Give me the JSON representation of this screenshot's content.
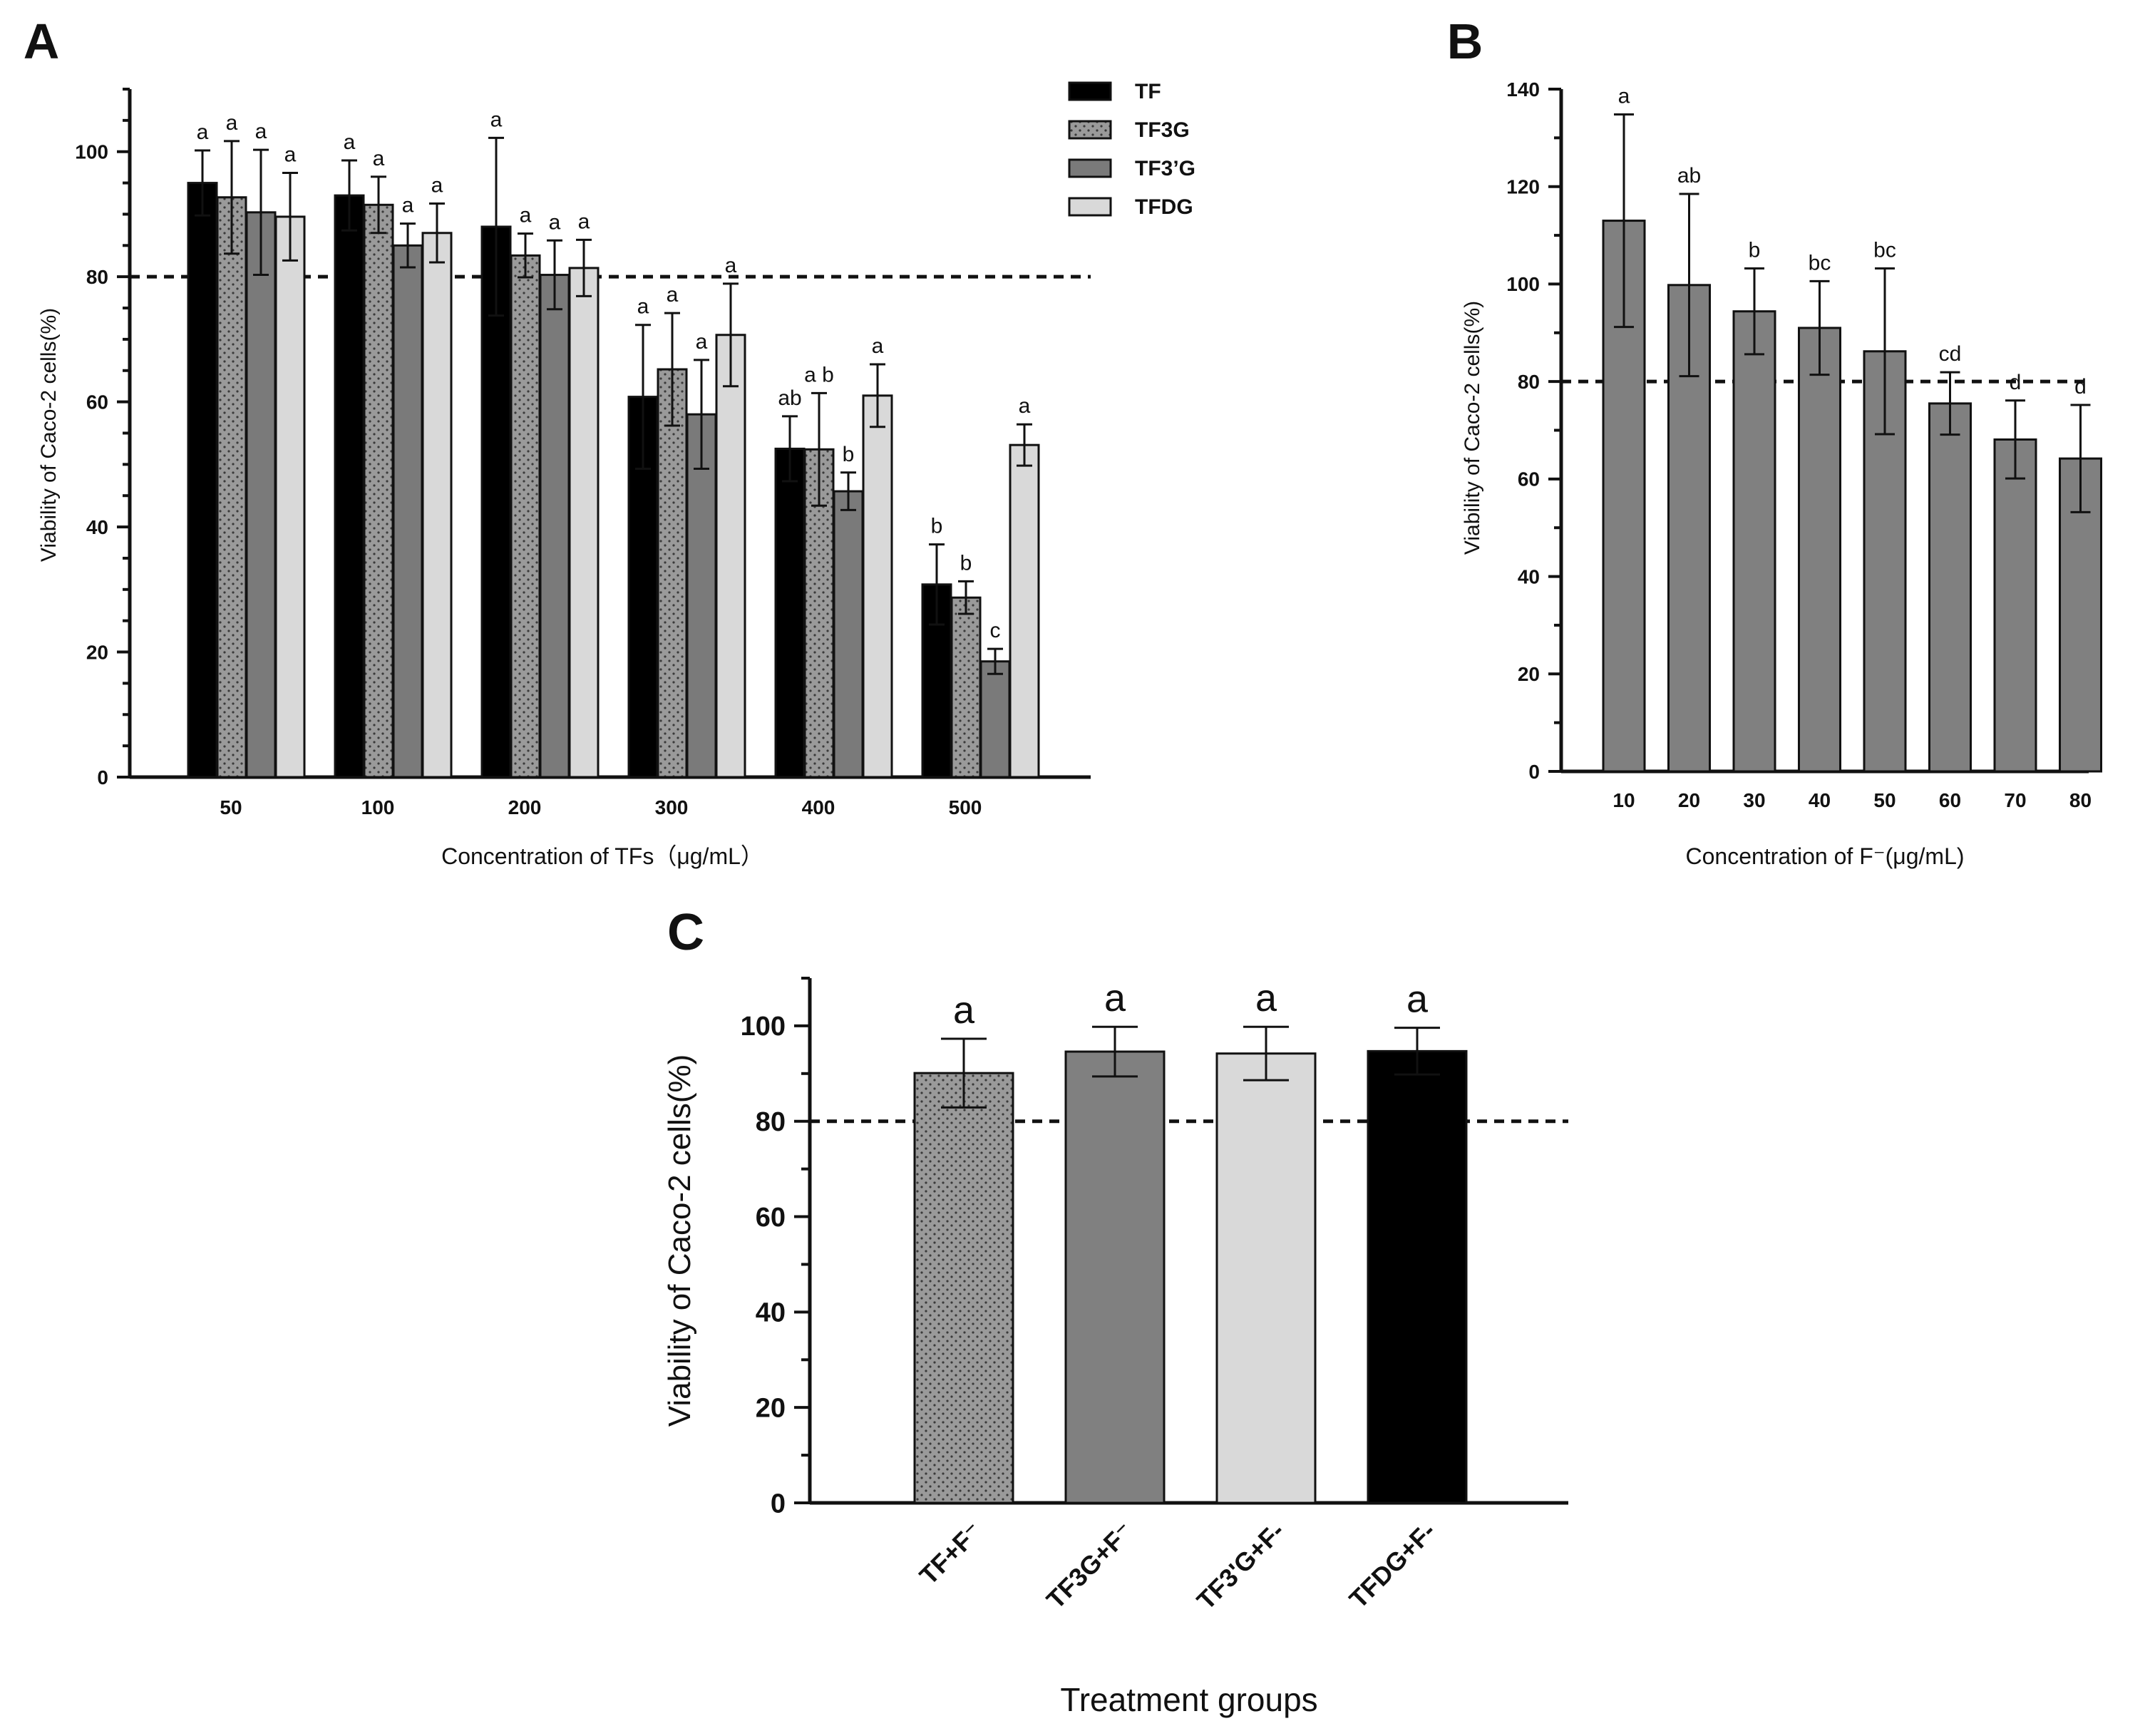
{
  "chart_data": [
    {
      "panel_label": "A",
      "type": "bar",
      "xlabel": "Concentration of TFs（μg/mL）",
      "ylabel": "Viability of Caco-2 cells(%)",
      "ylim": [
        0,
        110
      ],
      "yticks": [
        "0",
        "20",
        "40",
        "60",
        "80",
        "100"
      ],
      "threshold": 80,
      "categories": [
        "50",
        "100",
        "200",
        "300",
        "400",
        "500"
      ],
      "legend_position": "top-right",
      "series": [
        {
          "name": "TF",
          "fill": "#000000",
          "pattern": "solid",
          "values": [
            95.0,
            93.0,
            88.0,
            60.8,
            52.5,
            30.8
          ],
          "errors": [
            5.2,
            5.6,
            14.2,
            11.5,
            5.2,
            6.4
          ],
          "letters": [
            "a",
            "a",
            "a",
            "a",
            "ab",
            "b"
          ]
        },
        {
          "name": "TF3G",
          "fill": "#9a9a9a",
          "pattern": "dots",
          "values": [
            92.7,
            91.5,
            83.4,
            65.2,
            52.4,
            28.7
          ],
          "errors": [
            9.0,
            4.5,
            3.5,
            9.0,
            9.0,
            2.6
          ],
          "letters": [
            "a",
            "a",
            "a",
            "a",
            "a b",
            "b"
          ]
        },
        {
          "name": "TF3’G",
          "fill": "#7a7a7a",
          "pattern": "solid",
          "values": [
            90.3,
            85.0,
            80.3,
            58.0,
            45.7,
            18.5
          ],
          "errors": [
            10.0,
            3.5,
            5.5,
            8.7,
            3.0,
            2.0
          ],
          "letters": [
            "a",
            "a",
            "a",
            "a",
            "b",
            "c"
          ]
        },
        {
          "name": "TFDG",
          "fill": "#d9d9d9",
          "pattern": "solid",
          "values": [
            89.6,
            87.0,
            81.4,
            70.7,
            61.0,
            53.1
          ],
          "errors": [
            7.0,
            4.7,
            4.5,
            8.2,
            5.0,
            3.3
          ],
          "letters": [
            "a",
            "a",
            "a",
            "a",
            "a",
            "a"
          ]
        }
      ]
    },
    {
      "panel_label": "B",
      "type": "bar",
      "xlabel": "Concentration of F⁻(μg/mL)",
      "ylabel": "Viability of Caco-2 cells(%)",
      "ylim": [
        0,
        140
      ],
      "yticks": [
        "0",
        "20",
        "40",
        "60",
        "80",
        "100",
        "120",
        "140"
      ],
      "threshold": 80,
      "categories": [
        "10",
        "20",
        "30",
        "40",
        "50",
        "60",
        "70",
        "80"
      ],
      "bar_fill": "#808080",
      "values": [
        113.0,
        99.8,
        94.4,
        91.0,
        86.2,
        75.5,
        68.1,
        64.2
      ],
      "errors": [
        21.8,
        18.7,
        8.8,
        9.6,
        17.0,
        6.4,
        8.0,
        11.0
      ],
      "letters": [
        "a",
        "ab",
        "b",
        "bc",
        "bc",
        "cd",
        "d",
        "d"
      ]
    },
    {
      "panel_label": "C",
      "type": "bar",
      "xlabel": "Treatment groups",
      "ylabel": "Viability of Caco-2 cells(%)",
      "ylim": [
        0,
        110
      ],
      "yticks": [
        "0",
        "20",
        "40",
        "60",
        "80",
        "100"
      ],
      "threshold": 80,
      "categories": [
        "TF+F⁻",
        "TF3G+F⁻",
        "TF3'G+F-",
        "TFDG+F-"
      ],
      "fills": [
        "#9a9a9a",
        "#808080",
        "#d9d9d9",
        "#000000"
      ],
      "patterns": [
        "dots",
        "solid",
        "solid",
        "solid"
      ],
      "values": [
        90.1,
        94.6,
        94.2,
        94.7
      ],
      "errors": [
        7.2,
        5.2,
        5.6,
        4.9
      ],
      "letters": [
        "a",
        "a",
        "a",
        "a"
      ]
    }
  ]
}
